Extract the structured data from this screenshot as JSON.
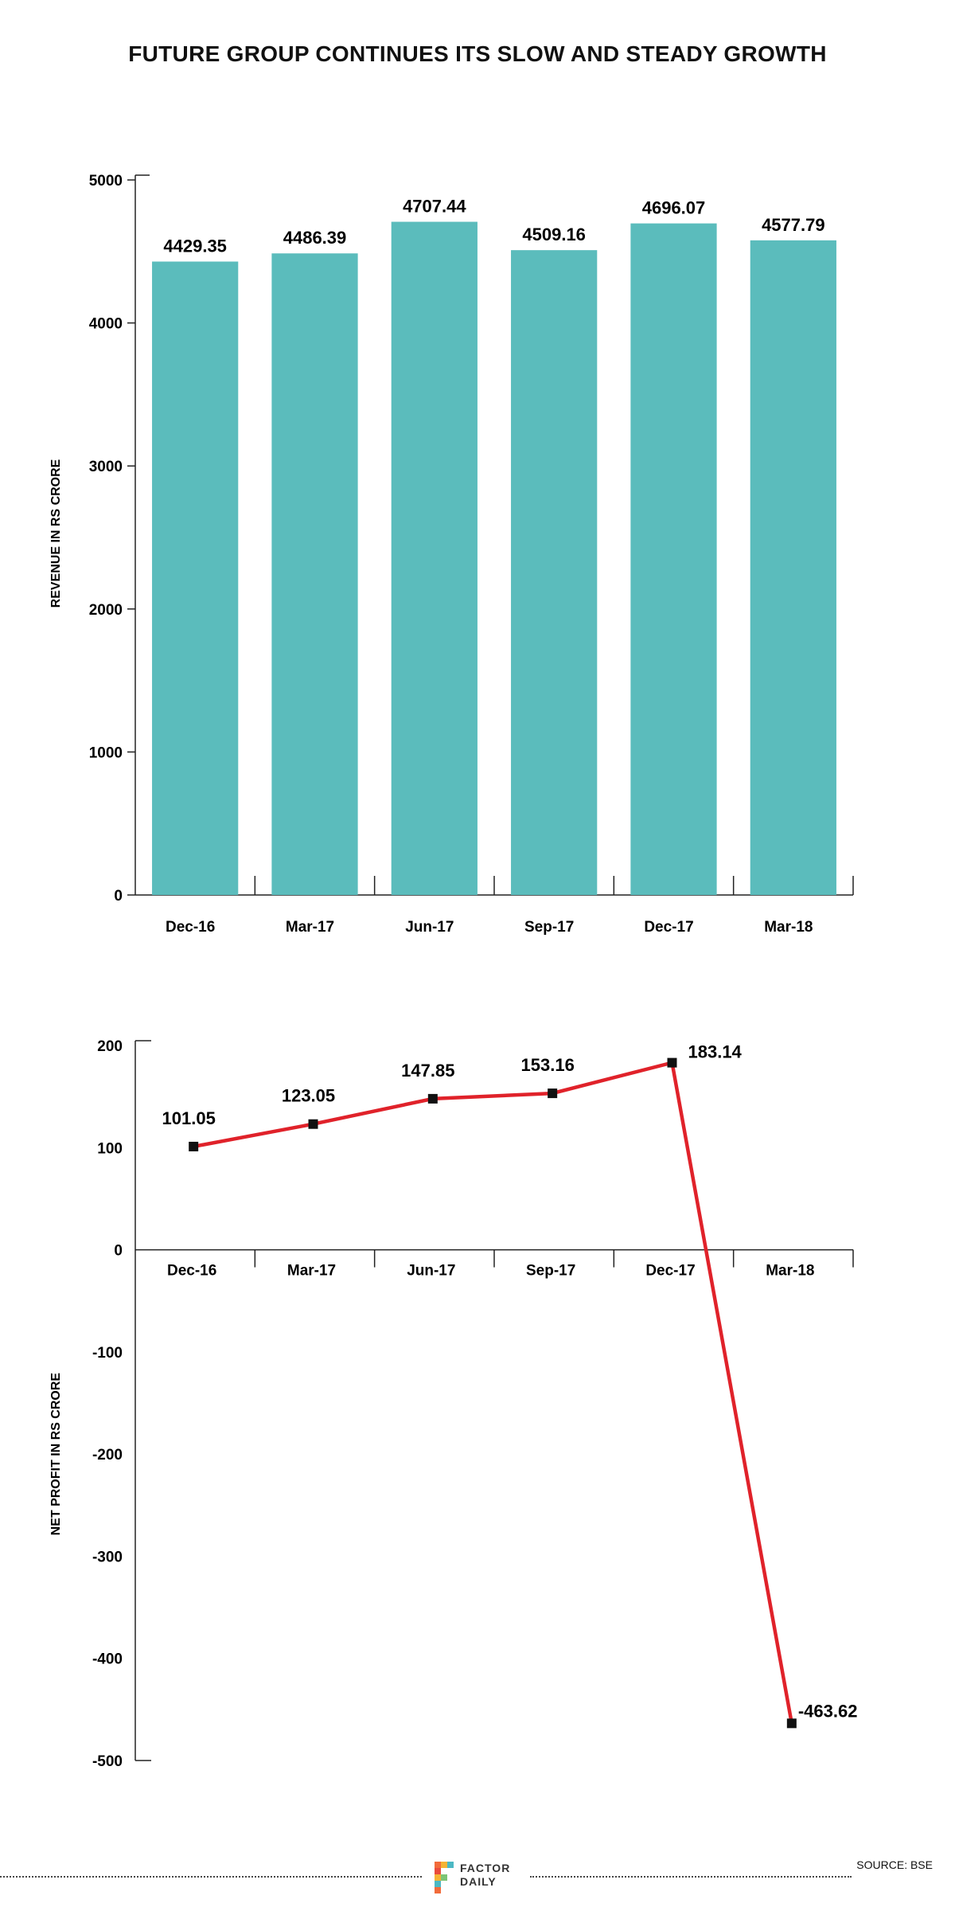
{
  "title": "FUTURE GROUP CONTINUES ITS SLOW AND STEADY GROWTH",
  "footer": {
    "source": "SOURCE: BSE",
    "logo_line1": "FACTOR",
    "logo_line2": "DAILY"
  },
  "colors": {
    "bar": "#5bbcbc",
    "line": "#e0222a",
    "marker": "#111111"
  },
  "chart_data": [
    {
      "type": "bar",
      "title": "",
      "xlabel": "",
      "ylabel": "REVENUE IN RS CRORE",
      "categories": [
        "Dec-16",
        "Mar-17",
        "Jun-17",
        "Sep-17",
        "Dec-17",
        "Mar-18"
      ],
      "values": [
        4429.35,
        4486.39,
        4707.44,
        4509.16,
        4696.07,
        4577.79
      ],
      "value_labels": [
        "4429.35",
        "4486.39",
        "4707.44",
        "4509.16",
        "4696.07",
        "4577.79"
      ],
      "ylim": [
        0,
        5000
      ],
      "yticks": [
        0,
        1000,
        2000,
        3000,
        4000,
        5000
      ],
      "grid": false
    },
    {
      "type": "line",
      "title": "",
      "xlabel": "",
      "ylabel": "NET PROFIT IN RS CRORE",
      "categories": [
        "Dec-16",
        "Mar-17",
        "Jun-17",
        "Sep-17",
        "Dec-17",
        "Mar-18"
      ],
      "values": [
        101.05,
        123.05,
        147.85,
        153.16,
        183.14,
        -463.62
      ],
      "value_labels": [
        "101.05",
        "123.05",
        "147.85",
        "153.16",
        "183.14",
        "-463.62"
      ],
      "ylim": [
        -500,
        200
      ],
      "yticks": [
        200,
        100,
        0,
        -100,
        -200,
        -300,
        -400,
        -500
      ],
      "grid": false
    }
  ]
}
